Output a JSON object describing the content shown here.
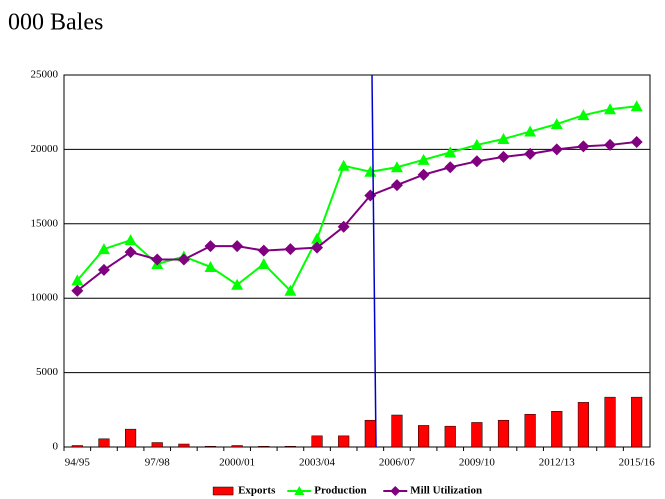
{
  "chart_data": {
    "type": "bar-line",
    "title": "000 Bales",
    "categories": [
      "94/95",
      null,
      null,
      "97/98",
      null,
      null,
      "2000/01",
      null,
      null,
      "2003/04",
      null,
      null,
      "2006/07",
      null,
      null,
      "2009/10",
      null,
      null,
      "2012/13",
      null,
      null,
      "2015/16"
    ],
    "series": [
      {
        "name": "Exports",
        "type": "bar",
        "color": "#ff0000",
        "values": [
          100,
          550,
          1200,
          300,
          200,
          50,
          100,
          50,
          50,
          750,
          750,
          1800,
          2150,
          1450,
          1400,
          1650,
          1800,
          2200,
          2400,
          3000,
          3350,
          3350
        ]
      },
      {
        "name": "Production",
        "type": "line",
        "marker": "triangle",
        "color": "#00ff00",
        "values": [
          11200,
          13300,
          13900,
          12300,
          12800,
          12100,
          10900,
          12300,
          10500,
          14000,
          18900,
          18500,
          18800,
          19300,
          19800,
          20300,
          20700,
          21200,
          21700,
          22300,
          22700,
          22900
        ]
      },
      {
        "name": "Mill Utilization",
        "type": "line",
        "marker": "diamond",
        "color": "#800080",
        "values": [
          10500,
          11900,
          13100,
          12600,
          12600,
          13500,
          13500,
          13200,
          13300,
          13400,
          14800,
          16900,
          17600,
          18300,
          18800,
          19200,
          19500,
          19700,
          20000,
          20200,
          20300,
          20500
        ]
      }
    ],
    "ylim": [
      0,
      25000
    ],
    "yticks": [
      0,
      5000,
      10000,
      15000,
      20000,
      25000
    ],
    "grid": true,
    "legend": "bottom"
  }
}
